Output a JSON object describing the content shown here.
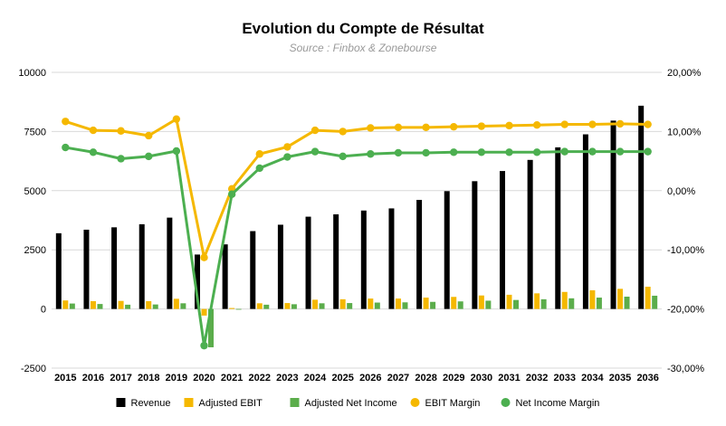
{
  "chart_data": {
    "type": "bar",
    "title": "Evolution du Compte de Résultat",
    "subtitle": "Source : Finbox & Zonebourse",
    "categories": [
      "2015",
      "2016",
      "2017",
      "2018",
      "2019",
      "2020",
      "2021",
      "2022",
      "2023",
      "2024",
      "2025",
      "2026",
      "2027",
      "2028",
      "2029",
      "2030",
      "2031",
      "2032",
      "2033",
      "2034",
      "2035",
      "2036"
    ],
    "ylim_left": [
      -2500,
      10000
    ],
    "ylim_right": [
      -30,
      20
    ],
    "yticks_left": [
      "-2500",
      "0",
      "2500",
      "5000",
      "7500",
      "10000"
    ],
    "yticks_right": [
      "-30,00%",
      "-20,00%",
      "-10,00%",
      "0,00%",
      "10,00%",
      "20,00%"
    ],
    "grid": true,
    "legend_position": "bottom",
    "series": [
      {
        "name": "Revenue",
        "kind": "bar",
        "axis": "left",
        "color": "#000000",
        "values": [
          3200,
          3350,
          3450,
          3580,
          3860,
          2300,
          2730,
          3290,
          3560,
          3900,
          4000,
          4160,
          4250,
          4610,
          4980,
          5400,
          5830,
          6300,
          6830,
          7380,
          7960,
          8590
        ]
      },
      {
        "name": "Adjusted EBIT",
        "kind": "bar",
        "axis": "left",
        "color": "#F5B800",
        "values": [
          360,
          330,
          340,
          330,
          430,
          -280,
          40,
          240,
          250,
          390,
          410,
          440,
          440,
          480,
          510,
          570,
          600,
          660,
          720,
          790,
          850,
          940
        ]
      },
      {
        "name": "Adjusted Net Income",
        "kind": "bar",
        "axis": "left",
        "color": "#5BAD4B",
        "values": [
          230,
          210,
          180,
          190,
          240,
          -1620,
          -30,
          180,
          200,
          240,
          250,
          270,
          280,
          300,
          320,
          350,
          380,
          410,
          450,
          480,
          520,
          560
        ]
      },
      {
        "name": "EBIT Margin",
        "kind": "line",
        "axis": "right",
        "color": "#F5B800",
        "values": [
          11.7,
          10.2,
          10.1,
          9.3,
          12.1,
          -11.3,
          0.3,
          6.2,
          7.4,
          10.2,
          10.0,
          10.6,
          10.7,
          10.7,
          10.8,
          10.9,
          11.0,
          11.1,
          11.2,
          11.2,
          11.3,
          11.2
        ]
      },
      {
        "name": "Net Income Margin",
        "kind": "line",
        "axis": "right",
        "color": "#4CAF50",
        "values": [
          7.3,
          6.5,
          5.4,
          5.8,
          6.7,
          -26.2,
          -0.6,
          3.8,
          5.7,
          6.6,
          5.8,
          6.2,
          6.4,
          6.4,
          6.5,
          6.5,
          6.5,
          6.5,
          6.6,
          6.6,
          6.6,
          6.6
        ]
      }
    ]
  }
}
